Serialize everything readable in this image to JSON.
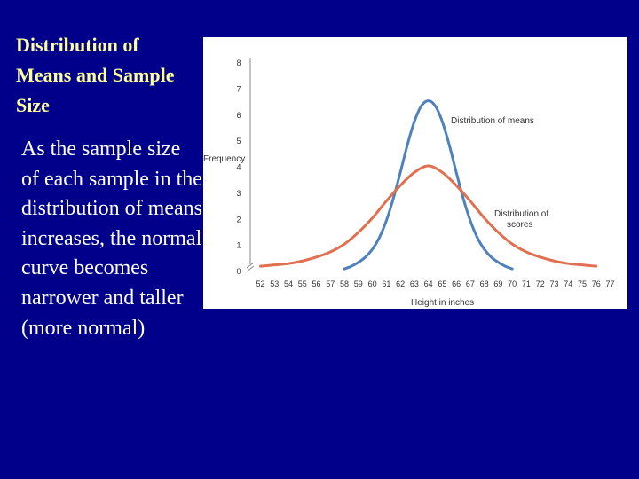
{
  "slide": {
    "title": "Distribution of\nMeans and Sample\nSize",
    "body": "As the sample size of each sample in the distribution of means increases, the normal curve becomes narrower and taller (more normal)"
  },
  "chart_data": {
    "type": "line",
    "xlabel": "Height in inches",
    "ylabel": "Frequency",
    "x_ticks": [
      52,
      53,
      54,
      55,
      56,
      57,
      58,
      59,
      60,
      61,
      62,
      63,
      64,
      65,
      66,
      67,
      68,
      69,
      70,
      71,
      72,
      73,
      74,
      75,
      76,
      77
    ],
    "y_ticks": [
      0,
      1,
      2,
      3,
      4,
      5,
      6,
      7,
      8
    ],
    "xlim": [
      52,
      77
    ],
    "ylim": [
      0,
      8
    ],
    "axis_break": true,
    "series": [
      {
        "name": "Distribution of means",
        "color": "#4f81bd",
        "x": [
          58,
          58.5,
          59,
          59.5,
          60,
          60.5,
          61,
          61.5,
          62,
          62.5,
          63,
          63.5,
          64,
          64.5,
          65,
          65.5,
          66,
          66.5,
          67,
          67.5,
          68,
          68.5,
          69,
          69.5,
          70
        ],
        "y": [
          0.1,
          0.2,
          0.35,
          0.55,
          0.85,
          1.3,
          1.95,
          2.8,
          3.8,
          4.85,
          5.75,
          6.35,
          6.55,
          6.35,
          5.75,
          4.85,
          3.8,
          2.8,
          1.95,
          1.3,
          0.85,
          0.55,
          0.35,
          0.2,
          0.1
        ]
      },
      {
        "name": "Distribution of scores",
        "color": "#e07050",
        "x": [
          52,
          53,
          54,
          55,
          56,
          57,
          58,
          59,
          60,
          61,
          62,
          63,
          64,
          65,
          66,
          67,
          68,
          69,
          70,
          71,
          72,
          73,
          74,
          75,
          76
        ],
        "y": [
          0.2,
          0.25,
          0.3,
          0.4,
          0.55,
          0.75,
          1.05,
          1.5,
          2.05,
          2.7,
          3.3,
          3.8,
          4.05,
          3.8,
          3.3,
          2.7,
          2.05,
          1.5,
          1.05,
          0.75,
          0.55,
          0.4,
          0.3,
          0.25,
          0.2
        ]
      }
    ]
  }
}
